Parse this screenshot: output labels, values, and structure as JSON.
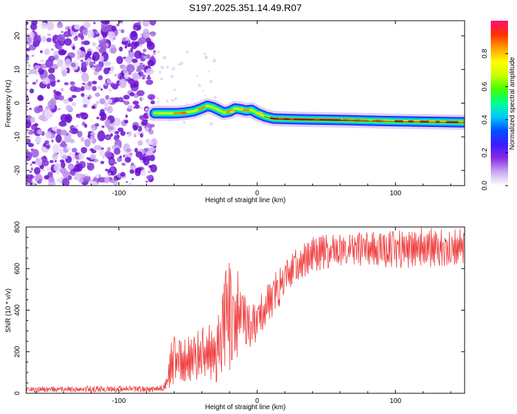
{
  "title": "S197.2025.351.14.49.R07",
  "chart_data": [
    {
      "type": "heatmap",
      "name": "spectrogram",
      "xlabel": "Height of straight line (km)",
      "ylabel": "Frequency (Hz)",
      "xlim": [
        -167,
        150
      ],
      "ylim": [
        -24.5,
        24.5
      ],
      "xticks": [
        -100,
        0,
        100
      ],
      "yticks": [
        20,
        10,
        0,
        -10,
        -20
      ],
      "noise_region_x": [
        -167,
        -74
      ],
      "ridge": [
        {
          "x": -74,
          "f": -3.0
        },
        {
          "x": -64,
          "f": -3.0
        },
        {
          "x": -58,
          "f": -3.0
        },
        {
          "x": -52,
          "f": -2.8
        },
        {
          "x": -46,
          "f": -2.4
        },
        {
          "x": -40,
          "f": -1.5
        },
        {
          "x": -36,
          "f": -0.8
        },
        {
          "x": -32,
          "f": -1.2
        },
        {
          "x": -28,
          "f": -2.0
        },
        {
          "x": -24,
          "f": -2.8
        },
        {
          "x": -20,
          "f": -2.5
        },
        {
          "x": -16,
          "f": -1.6
        },
        {
          "x": -12,
          "f": -1.8
        },
        {
          "x": -8,
          "f": -2.2
        },
        {
          "x": -4,
          "f": -2.0
        },
        {
          "x": 0,
          "f": -3.0
        },
        {
          "x": 6,
          "f": -4.0
        },
        {
          "x": 12,
          "f": -4.6
        },
        {
          "x": 30,
          "f": -4.8
        },
        {
          "x": 60,
          "f": -5.0
        },
        {
          "x": 90,
          "f": -5.3
        },
        {
          "x": 120,
          "f": -5.5
        },
        {
          "x": 150,
          "f": -5.7
        }
      ],
      "colorbar": {
        "label": "Normalized spectral amplitude",
        "range": [
          0,
          1
        ],
        "ticks": [
          0.0,
          0.2,
          0.4,
          0.6,
          0.8
        ],
        "colors": [
          "#ffffff",
          "#c8a8f0",
          "#8a2be2",
          "#3a1cff",
          "#0050ff",
          "#00c8ff",
          "#00ff90",
          "#40ff00",
          "#c8ff00",
          "#ffff00",
          "#ffa000",
          "#ff3000",
          "#ff1070"
        ]
      }
    },
    {
      "type": "line",
      "name": "snr",
      "xlabel": "Height of straight line (km)",
      "ylabel": "SNR (10 * v/v)",
      "xlim": [
        -167,
        150
      ],
      "ylim": [
        0,
        800
      ],
      "xticks": [
        -100,
        0,
        100
      ],
      "yticks": [
        0,
        200,
        400,
        600,
        800
      ],
      "color": "#ee3333",
      "envelope": [
        {
          "x": -167,
          "lo": 5,
          "hi": 35
        },
        {
          "x": -70,
          "lo": 5,
          "hi": 35
        },
        {
          "x": -65,
          "lo": 15,
          "hi": 80
        },
        {
          "x": -62,
          "lo": 30,
          "hi": 280
        },
        {
          "x": -55,
          "lo": 50,
          "hi": 260
        },
        {
          "x": -45,
          "lo": 60,
          "hi": 300
        },
        {
          "x": -35,
          "lo": 60,
          "hi": 330
        },
        {
          "x": -30,
          "lo": 30,
          "hi": 400
        },
        {
          "x": -22,
          "lo": 80,
          "hi": 650
        },
        {
          "x": -12,
          "lo": 160,
          "hi": 580
        },
        {
          "x": -5,
          "lo": 200,
          "hi": 420
        },
        {
          "x": 5,
          "lo": 300,
          "hi": 500
        },
        {
          "x": 15,
          "lo": 400,
          "hi": 600
        },
        {
          "x": 25,
          "lo": 520,
          "hi": 680
        },
        {
          "x": 40,
          "lo": 580,
          "hi": 760
        },
        {
          "x": 60,
          "lo": 600,
          "hi": 770
        },
        {
          "x": 90,
          "lo": 600,
          "hi": 780
        },
        {
          "x": 120,
          "lo": 600,
          "hi": 800
        },
        {
          "x": 150,
          "lo": 610,
          "hi": 790
        }
      ]
    }
  ]
}
